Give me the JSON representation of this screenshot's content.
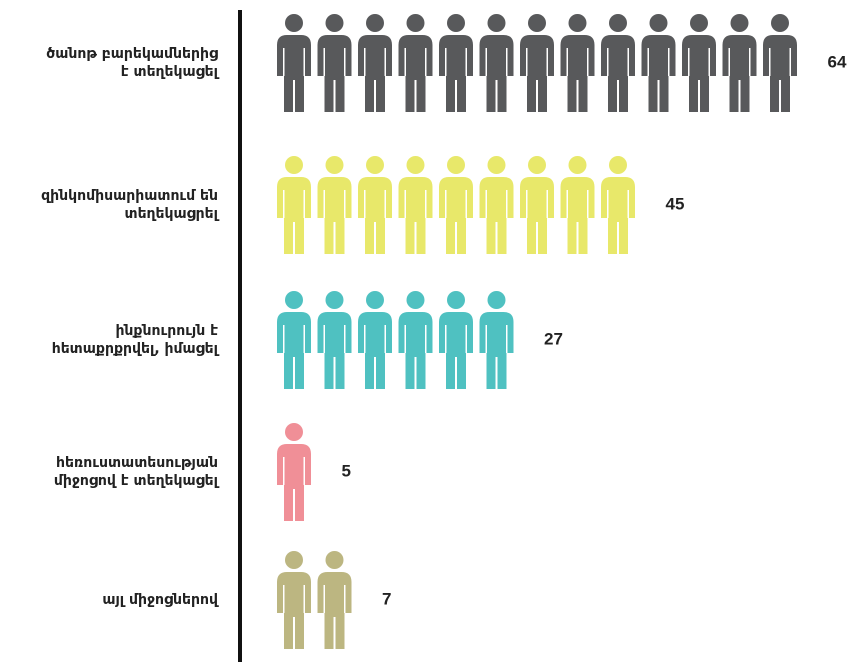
{
  "chart_data": {
    "type": "pictograph",
    "categories": [
      "ծանոթ բարեկամներից\nէ տեղեկացել",
      "զինկոմիսարիատում են\nտեղեկացրել",
      "ինքնուրույն է\nհետաքրքրվել, իմացել",
      "հեռուստատեսության\nմիջոցով է տեղեկացել",
      "այլ միջոցներով"
    ],
    "values": [
      64,
      45,
      27,
      5,
      7
    ],
    "colors": [
      "#58595b",
      "#e8e86a",
      "#4fc1c1",
      "#f08f97",
      "#bcb681"
    ]
  }
}
